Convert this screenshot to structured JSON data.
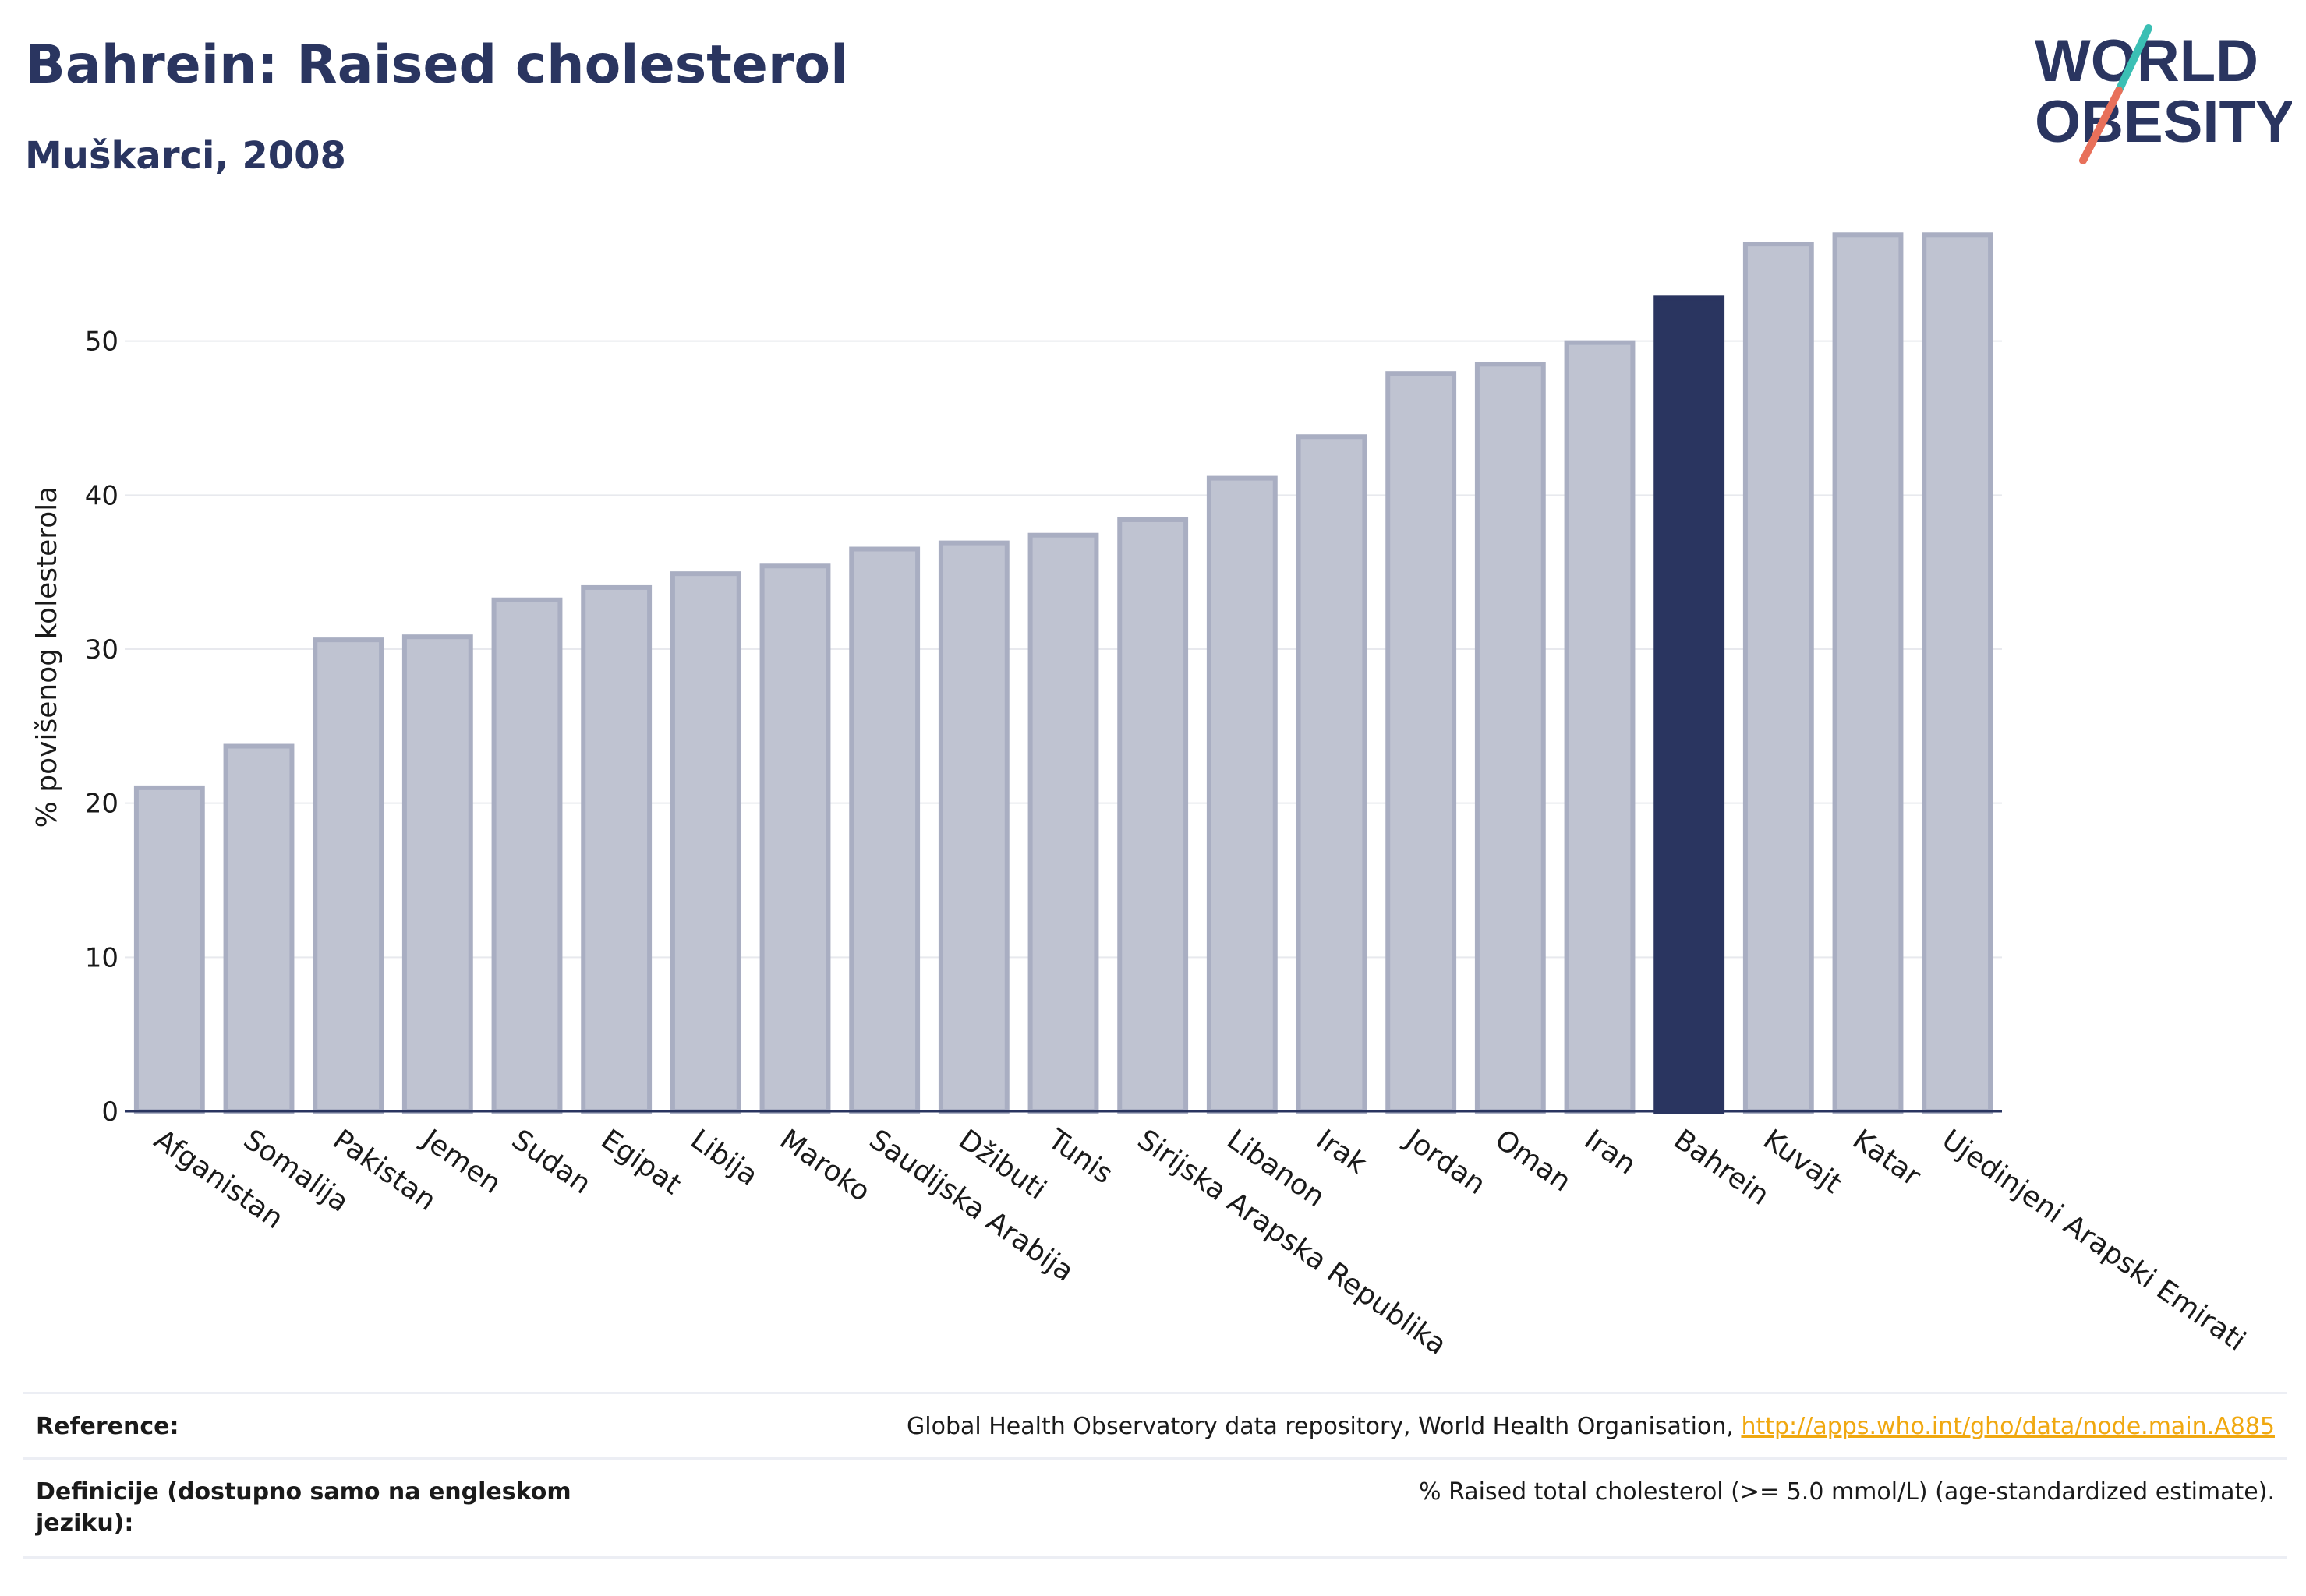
{
  "title": "Bahrein: Raised cholesterol",
  "subtitle": "Muškarci, 2008",
  "logo": {
    "line1": "WORLD",
    "line2": "OBESITY"
  },
  "colors": {
    "highlight": "#2a3560",
    "bar_fill": "#bfc3d1",
    "bar_stroke": "#a9aec2",
    "grid": "#e8e9ee",
    "slash_teal": "#3bbfb4",
    "slash_coral": "#e8705a"
  },
  "chart_data": {
    "type": "bar",
    "ylabel": "% povišenog kolesterola",
    "ylim": [
      0,
      60
    ],
    "yticks": [
      0,
      10,
      20,
      30,
      40,
      50
    ],
    "highlight": "Bahrein",
    "categories": [
      "Afganistan",
      "Somalija",
      "Pakistan",
      "Jemen",
      "Sudan",
      "Egipat",
      "Libija",
      "Maroko",
      "Saudijska Arabija",
      "Džibuti",
      "Tunis",
      "Sirijska Arapska Republika",
      "Libanon",
      "Irak",
      "Jordan",
      "Oman",
      "Iran",
      "Bahrein",
      "Kuvajt",
      "Katar",
      "Ujedinjeni Arapski Emirati"
    ],
    "values": [
      21.0,
      23.7,
      30.6,
      30.8,
      33.2,
      34.0,
      34.9,
      35.4,
      36.5,
      36.9,
      37.4,
      38.4,
      41.1,
      43.8,
      47.9,
      48.5,
      49.9,
      52.8,
      56.3,
      56.9,
      56.9
    ]
  },
  "footer": {
    "reference_label": "Reference:",
    "reference_text": "Global Health Observatory data repository, World Health Organisation, ",
    "reference_link": "http://apps.who.int/gho/data/node.main.A885",
    "definition_label": "Definicije (dostupno samo na engleskom jeziku):",
    "definition_text": "% Raised total cholesterol (>= 5.0 mmol/L) (age-standardized estimate)."
  }
}
